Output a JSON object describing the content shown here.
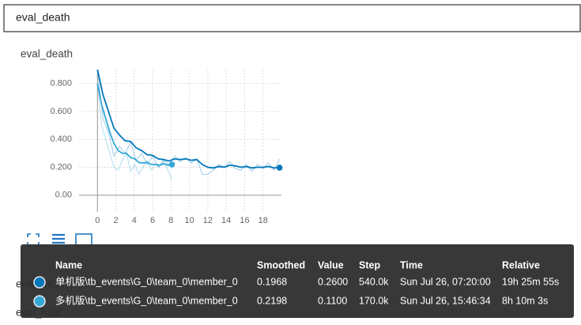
{
  "search": {
    "query": "eval_death"
  },
  "card": {
    "title": "eval_death"
  },
  "chart_data": {
    "type": "line",
    "xlim": [
      -2,
      20
    ],
    "ylim": [
      -0.12,
      0.9
    ],
    "xticks": [
      0,
      2,
      4,
      6,
      8,
      10,
      12,
      14,
      16,
      18
    ],
    "yticks": [
      {
        "value": 0,
        "label": "0.00"
      },
      {
        "value": 0.2,
        "label": "0.200"
      },
      {
        "value": 0.4,
        "label": "0.400"
      },
      {
        "value": 0.6,
        "label": "0.600"
      },
      {
        "value": 0.8,
        "label": "0.800"
      }
    ],
    "grid": true,
    "series": [
      {
        "name": "单机版\\tb_events\\G_0\\team_0\\member_0",
        "color": "#0077bb",
        "x": [
          0,
          0.6,
          1.2,
          1.8,
          2.4,
          3,
          3.6,
          4.2,
          4.8,
          5.4,
          6,
          6.6,
          7.2,
          7.8,
          8.4,
          9,
          9.6,
          10.2,
          10.8,
          11.4,
          12,
          12.6,
          13.2,
          13.8,
          14.4,
          15,
          15.6,
          16.2,
          16.8,
          17.4,
          18,
          18.6,
          19.2,
          19.8
        ],
        "values": [
          0.9,
          0.55,
          0.45,
          0.28,
          0.35,
          0.3,
          0.38,
          0.25,
          0.3,
          0.22,
          0.28,
          0.2,
          0.25,
          0.22,
          0.28,
          0.24,
          0.27,
          0.23,
          0.26,
          0.15,
          0.15,
          0.18,
          0.22,
          0.2,
          0.24,
          0.19,
          0.18,
          0.22,
          0.17,
          0.22,
          0.19,
          0.23,
          0.18,
          0.26
        ],
        "smoothed": [
          0.9,
          0.72,
          0.6,
          0.48,
          0.43,
          0.39,
          0.385,
          0.34,
          0.32,
          0.29,
          0.285,
          0.26,
          0.255,
          0.245,
          0.26,
          0.255,
          0.26,
          0.25,
          0.255,
          0.22,
          0.2,
          0.195,
          0.205,
          0.2,
          0.215,
          0.21,
          0.2,
          0.205,
          0.195,
          0.2,
          0.2,
          0.205,
          0.195,
          0.1968
        ]
      },
      {
        "name": "多机版\\tb_events\\G_0\\team_0\\member_0",
        "color": "#33a7d8",
        "x": [
          0,
          0.45,
          0.9,
          1.35,
          1.8,
          2.25,
          2.7,
          3.15,
          3.6,
          4.05,
          4.5,
          4.95,
          5.4,
          5.85,
          6.3,
          6.75,
          7.2,
          7.65,
          8.1
        ],
        "values": [
          0.8,
          0.5,
          0.4,
          0.3,
          0.2,
          0.18,
          0.25,
          0.3,
          0.17,
          0.22,
          0.15,
          0.2,
          0.25,
          0.18,
          0.22,
          0.2,
          0.25,
          0.18,
          0.11
        ],
        "smoothed": [
          0.8,
          0.65,
          0.55,
          0.45,
          0.37,
          0.32,
          0.3,
          0.3,
          0.27,
          0.26,
          0.235,
          0.23,
          0.235,
          0.22,
          0.22,
          0.215,
          0.225,
          0.215,
          0.2198
        ]
      }
    ]
  },
  "tooltip": {
    "columns": [
      "Name",
      "Smoothed",
      "Value",
      "Step",
      "Time",
      "Relative"
    ],
    "rows": [
      [
        "0.1968",
        "0.2600",
        "540.0k",
        "Sun Jul 26, 07:20:00",
        "19h 25m 55s"
      ],
      [
        "0.2198",
        "0.1100",
        "170.0k",
        "Sun Jul 26, 15:46:34",
        "8h 10m 3s"
      ]
    ]
  },
  "sections": [
    "eval_death",
    "eval_heal"
  ]
}
